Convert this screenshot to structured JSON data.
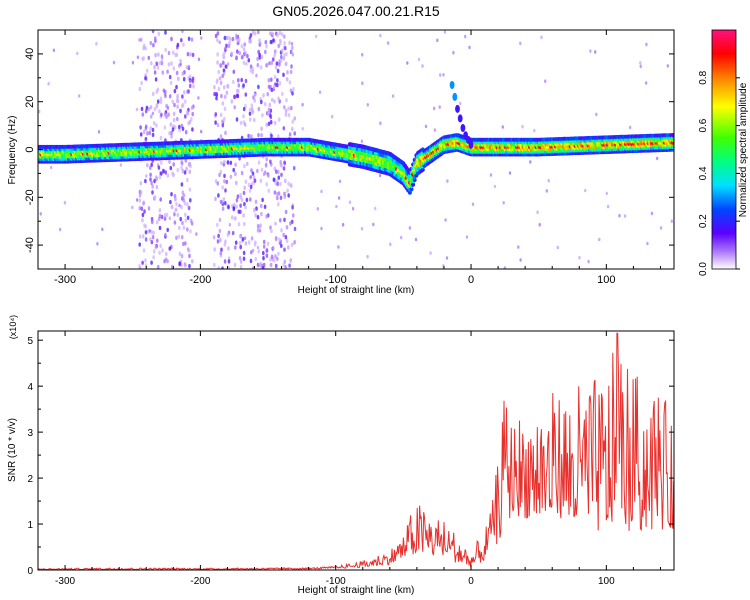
{
  "title": "GN05.2026.047.00.21.R15",
  "chart_data": [
    {
      "type": "heatmap",
      "xlabel": "Height of straight line (km)",
      "ylabel": "Frequency (Hz)",
      "xlim": [
        -320,
        150
      ],
      "ylim": [
        -50,
        50
      ],
      "x_ticks": [
        -300,
        -200,
        -100,
        0,
        100
      ],
      "y_ticks": [
        -40,
        -20,
        0,
        20,
        40
      ],
      "colorbar": {
        "label": "Normalized spectral amplitude",
        "range": [
          0,
          1
        ],
        "ticks": [
          0.0,
          0.2,
          0.4,
          0.6,
          0.8
        ],
        "tick_labels": [
          "0.0",
          "0.2",
          "0.4",
          "0.6",
          "0.8"
        ]
      },
      "main_band": {
        "x": [
          -320,
          -300,
          -250,
          -200,
          -150,
          -120,
          -100,
          -80,
          -60,
          -50,
          -45,
          -40,
          -30,
          -20,
          -10,
          0,
          20,
          50,
          100,
          150
        ],
        "freq": [
          -2,
          -2,
          -1,
          0,
          1,
          1,
          -1,
          -3,
          -6,
          -10,
          -14,
          -6,
          -2,
          2,
          3,
          1,
          1,
          1,
          2,
          3
        ]
      },
      "branch": {
        "x": [
          -14,
          -12,
          -10,
          -8,
          -6,
          -4,
          -2,
          0
        ],
        "freq": [
          27,
          22,
          17,
          13,
          9,
          6,
          4,
          2
        ]
      },
      "scatter_regions": [
        {
          "x": [
            -245,
            -205
          ]
        },
        {
          "x": [
            -190,
            -130
          ]
        }
      ]
    },
    {
      "type": "line",
      "xlabel": "Height of straight line (km)",
      "ylabel": "SNR (10 * v/v)",
      "y_multiplier": "(x10⁴)",
      "xlim": [
        -320,
        150
      ],
      "ylim": [
        0,
        5.2
      ],
      "x_ticks": [
        -300,
        -200,
        -100,
        0,
        100
      ],
      "y_ticks": [
        0,
        1,
        2,
        3,
        4,
        5
      ],
      "series_color": "#e8302c",
      "envelope": {
        "x": [
          -320,
          -260,
          -200,
          -120,
          -100,
          -80,
          -60,
          -50,
          -45,
          -40,
          -30,
          -20,
          -10,
          0,
          10,
          15,
          20,
          25,
          30,
          50,
          80,
          100,
          110,
          120,
          140,
          150
        ],
        "y": [
          0.03,
          0.05,
          0.04,
          0.05,
          0.08,
          0.2,
          0.45,
          0.8,
          1.2,
          1.5,
          1.3,
          1.1,
          0.8,
          0.4,
          0.9,
          1.3,
          2.5,
          3.9,
          3.3,
          3.8,
          4.1,
          4.3,
          5.2,
          4.3,
          4.1,
          3.0
        ]
      },
      "baseline": {
        "x": [
          -320,
          -200,
          -120,
          -100,
          -80,
          -60,
          -50,
          -40,
          -30,
          -20,
          -10,
          0,
          10,
          20,
          30,
          60,
          100,
          150
        ],
        "y": [
          0.01,
          0.01,
          0.02,
          0.03,
          0.06,
          0.12,
          0.25,
          0.35,
          0.3,
          0.25,
          0.15,
          0.05,
          0.2,
          0.6,
          1.2,
          1.0,
          0.8,
          0.9
        ]
      }
    }
  ]
}
